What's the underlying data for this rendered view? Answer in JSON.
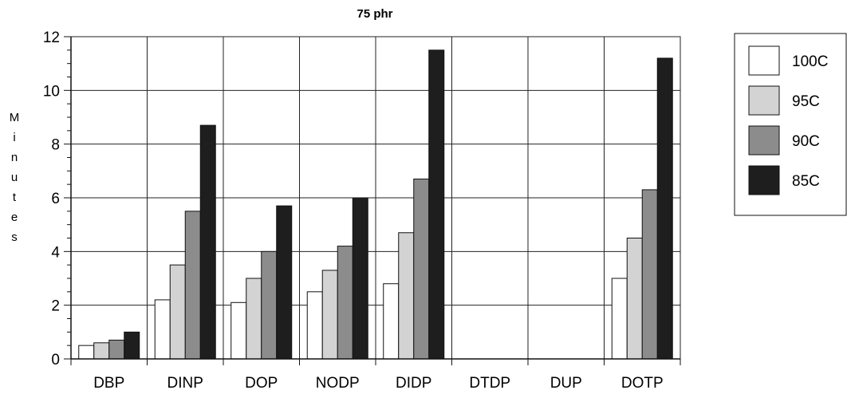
{
  "chart_data": {
    "type": "bar",
    "title": "75 phr",
    "ylabel": "Minutes",
    "xlabel": "",
    "ylim": [
      0,
      12
    ],
    "yticks": [
      0,
      2,
      4,
      6,
      8,
      10,
      12
    ],
    "grid": true,
    "legend_position": "right",
    "categories": [
      "DBP",
      "DINP",
      "DOP",
      "NODP",
      "DIDP",
      "DTDP",
      "DUP",
      "DOTP"
    ],
    "series": [
      {
        "name": "100C",
        "color": "#ffffff",
        "values": [
          0.5,
          2.2,
          2.1,
          2.5,
          2.8,
          0,
          0,
          3.0
        ]
      },
      {
        "name": "95C",
        "color": "#d3d3d3",
        "values": [
          0.6,
          3.5,
          3.0,
          3.3,
          4.7,
          0,
          0,
          4.5
        ]
      },
      {
        "name": "90C",
        "color": "#8c8c8c",
        "values": [
          0.7,
          5.5,
          4.0,
          4.2,
          6.7,
          0,
          0,
          6.3
        ]
      },
      {
        "name": "85C",
        "color": "#1e1e1e",
        "values": [
          1.0,
          8.7,
          5.7,
          6.0,
          11.5,
          0,
          0,
          11.2
        ]
      }
    ]
  }
}
